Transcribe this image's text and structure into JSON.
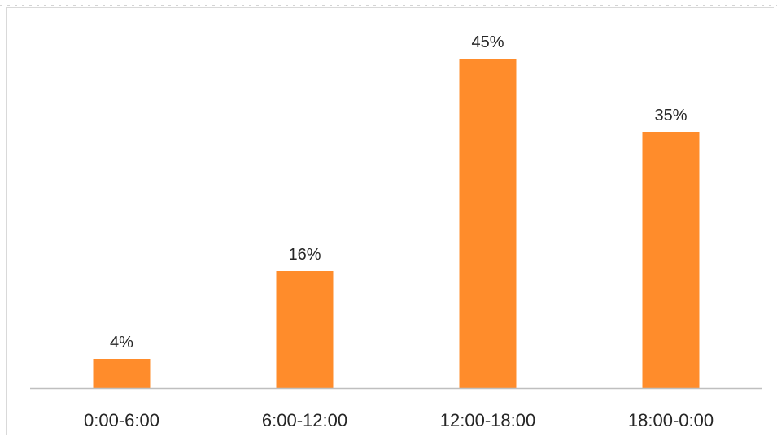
{
  "chart_data": {
    "type": "bar",
    "categories": [
      "0:00-6:00",
      "6:00-12:00",
      "12:00-18:00",
      "18:00-0:00"
    ],
    "values": [
      4,
      16,
      45,
      35
    ],
    "data_labels": [
      "4%",
      "16%",
      "45%",
      "35%"
    ],
    "ylim": [
      0,
      50
    ],
    "grid": false,
    "legend": "none",
    "bar_color": "#FF8C2B",
    "axis_color": "#BFBFBF",
    "label_color": "#262626"
  }
}
